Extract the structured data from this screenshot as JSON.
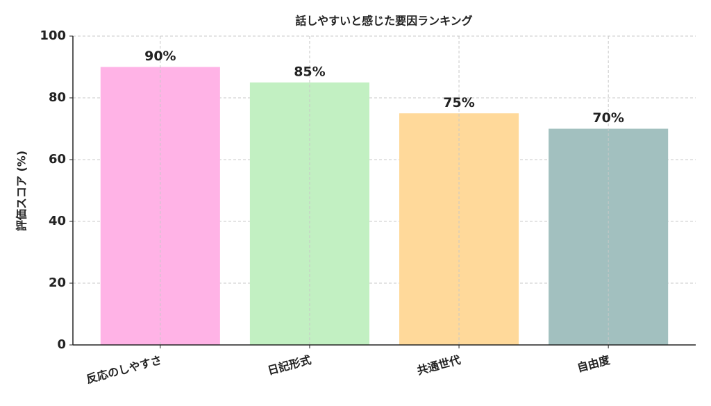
{
  "chart_data": {
    "type": "bar",
    "title": "話しやすいと感じた要因ランキング",
    "y_label": "評価スコア (%)",
    "categories": [
      "反応のしやすさ",
      "日記形式",
      "共通世代",
      "自由度"
    ],
    "values": [
      90,
      85,
      75,
      70
    ],
    "value_labels": [
      "90%",
      "85%",
      "75%",
      "70%"
    ],
    "colors": [
      "#ffb3e6",
      "#c2f0c2",
      "#ffd99a",
      "#a2c0bf"
    ],
    "ylim": [
      0,
      100
    ],
    "yticks": [
      0,
      20,
      40,
      60,
      80,
      100
    ],
    "grid": true
  }
}
